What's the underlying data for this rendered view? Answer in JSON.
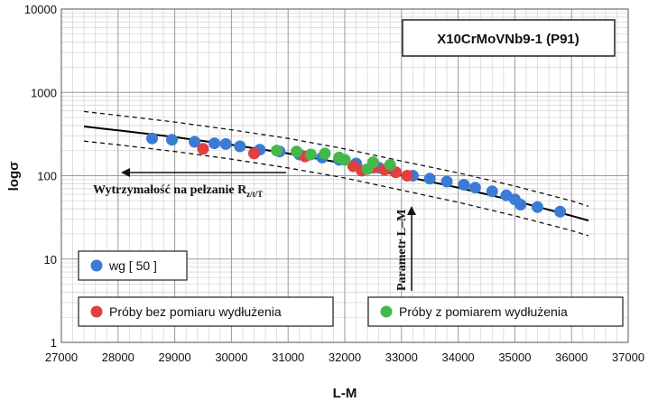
{
  "chart_data": {
    "type": "scatter",
    "title": "X10CrMoVNb9-1 (P91)",
    "xlabel": "L-M",
    "ylabel": "logσ",
    "xlim": [
      27000,
      37000
    ],
    "ylim": [
      1,
      10000
    ],
    "y_scale": "log",
    "grid": true,
    "x_ticks": [
      "27000",
      "28000",
      "29000",
      "30000",
      "31000",
      "32000",
      "33000",
      "34000",
      "35000",
      "36000",
      "37000"
    ],
    "y_ticks": [
      "1",
      "10",
      "100",
      "1000",
      "10000"
    ],
    "colors": {
      "blue": "#3a7bd5",
      "red": "#e04040",
      "green": "#44b84a",
      "curve": "#000000"
    },
    "annotations": {
      "strength_label_main": "Wytrzymałość na pełzanie R",
      "strength_label_sub": "z/t/T",
      "parameter_label": "Parametr L–M"
    },
    "legend": {
      "blue": "wg [ 50 ]",
      "red": "Próby bez pomiaru wydłużenia",
      "green": "Próby z pomiarem wydłużenia"
    },
    "curves": {
      "mean": {
        "x": [
          27400,
          28000,
          29000,
          30000,
          31000,
          32000,
          33000,
          34000,
          35000,
          36000,
          36300
        ],
        "y": [
          390,
          350,
          290,
          235,
          185,
          140,
          100,
          72,
          50,
          33,
          29
        ]
      },
      "upper": {
        "x": [
          27400,
          28000,
          29000,
          30000,
          31000,
          32000,
          33000,
          34000,
          35000,
          36000,
          36300
        ],
        "y": [
          590,
          530,
          440,
          355,
          280,
          210,
          150,
          108,
          75,
          50,
          43
        ]
      },
      "lower": {
        "x": [
          27400,
          28000,
          29000,
          30000,
          31000,
          32000,
          33000,
          34000,
          35000,
          36000,
          36300
        ],
        "y": [
          260,
          235,
          195,
          158,
          124,
          94,
          67,
          48,
          33,
          22,
          19
        ]
      }
    },
    "series": [
      {
        "name": "wg [ 50 ]",
        "color": "blue",
        "points": [
          [
            28600,
            280
          ],
          [
            28950,
            270
          ],
          [
            29350,
            255
          ],
          [
            29700,
            245
          ],
          [
            29900,
            240
          ],
          [
            30150,
            225
          ],
          [
            30500,
            205
          ],
          [
            30850,
            195
          ],
          [
            31200,
            180
          ],
          [
            31600,
            165
          ],
          [
            31900,
            155
          ],
          [
            32200,
            140
          ],
          [
            32600,
            125
          ],
          [
            32900,
            110
          ],
          [
            33200,
            100
          ],
          [
            33500,
            92
          ],
          [
            33800,
            85
          ],
          [
            34100,
            78
          ],
          [
            34300,
            72
          ],
          [
            34600,
            65
          ],
          [
            34850,
            58
          ],
          [
            35000,
            52
          ],
          [
            35100,
            45
          ],
          [
            35400,
            42
          ],
          [
            35800,
            37
          ]
        ]
      },
      {
        "name": "Próby bez pomiaru wydłużenia",
        "color": "red",
        "points": [
          [
            29500,
            210
          ],
          [
            30400,
            185
          ],
          [
            31300,
            170
          ],
          [
            32150,
            130
          ],
          [
            32300,
            115
          ],
          [
            32500,
            125
          ],
          [
            32700,
            118
          ],
          [
            32900,
            110
          ],
          [
            33100,
            100
          ]
        ]
      },
      {
        "name": "Próby z pomiarem wydłużenia",
        "color": "green",
        "points": [
          [
            30800,
            200
          ],
          [
            31150,
            195
          ],
          [
            31650,
            185
          ],
          [
            31900,
            165
          ],
          [
            32000,
            155
          ],
          [
            32500,
            145
          ],
          [
            32800,
            135
          ],
          [
            32400,
            120
          ],
          [
            31400,
            180
          ]
        ]
      }
    ]
  }
}
